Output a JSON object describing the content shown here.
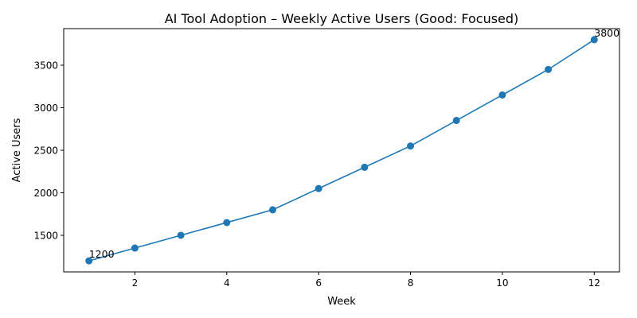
{
  "chart_data": {
    "type": "line",
    "title": "AI Tool Adoption – Weekly Active Users (Good: Focused)",
    "xlabel": "Week",
    "ylabel": "Active Users",
    "x": [
      1,
      2,
      3,
      4,
      5,
      6,
      7,
      8,
      9,
      10,
      11,
      12
    ],
    "series": [
      {
        "values": [
          1200,
          1350,
          1500,
          1650,
          1800,
          2050,
          2300,
          2550,
          2850,
          3150,
          3450,
          3800
        ]
      }
    ],
    "xlim": [
      0.45,
      12.55
    ],
    "ylim": [
      1070,
      3930
    ],
    "xticks": [
      2,
      4,
      6,
      8,
      10,
      12
    ],
    "yticks": [
      1500,
      2000,
      2500,
      3000,
      3500
    ],
    "annotations": [
      {
        "x": 1,
        "y": 1200,
        "text": "1200"
      },
      {
        "x": 12,
        "y": 3800,
        "text": "3800"
      }
    ],
    "grid": false,
    "legend": "none",
    "colors": {
      "series": "#1f77b4",
      "axis": "#000000",
      "background": "#ffffff"
    }
  }
}
